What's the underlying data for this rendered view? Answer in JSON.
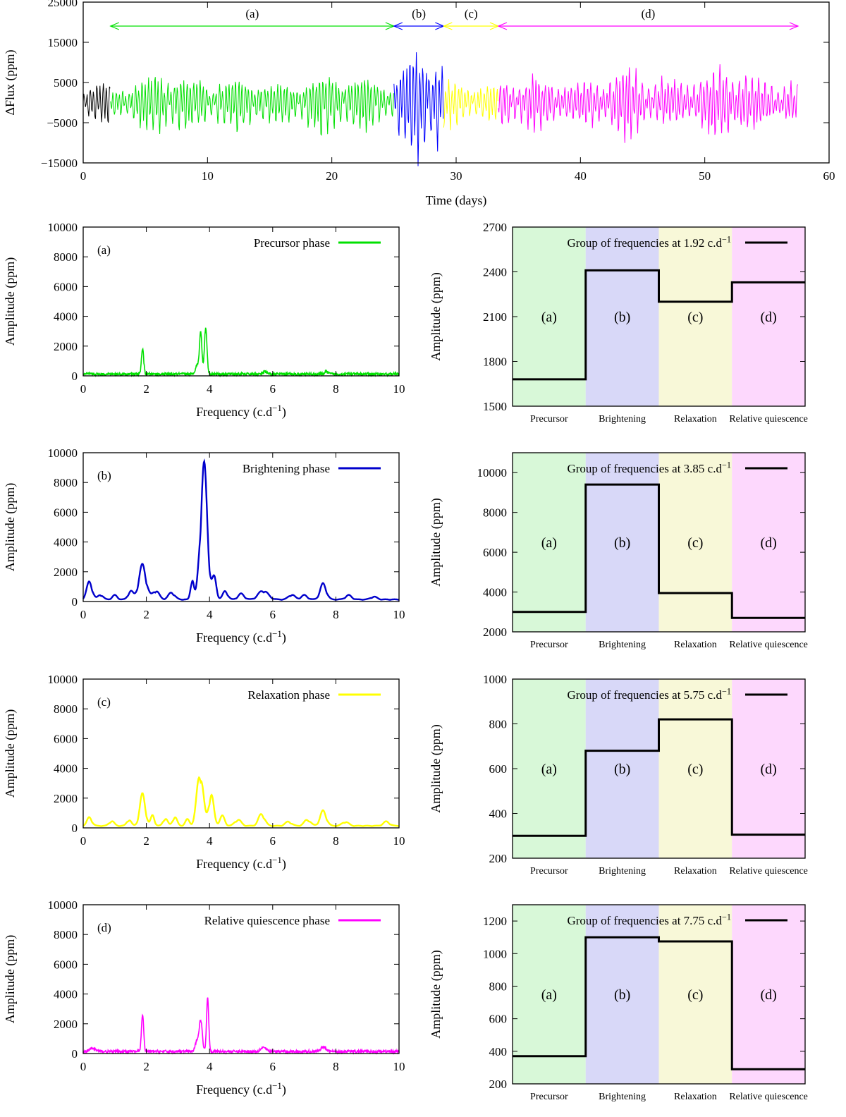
{
  "chart_data": [
    {
      "id": "lightcurve",
      "type": "line",
      "xlabel": "Time (days)",
      "ylabel": "ΔFlux (ppm)",
      "xlim": [
        0,
        60
      ],
      "ylim": [
        -15000,
        25000
      ],
      "xticks": [
        0,
        10,
        20,
        30,
        40,
        50,
        60
      ],
      "yticks": [
        -15000,
        -5000,
        5000,
        15000,
        25000
      ],
      "segments": [
        {
          "name": "pre",
          "color": "#000000",
          "x_range": [
            0,
            2.2
          ],
          "envelope": [
            [
              0,
              4000
            ],
            [
              1,
              5000
            ],
            [
              2.2,
              5500
            ]
          ]
        },
        {
          "name": "(a)",
          "color": "#00e000",
          "x_range": [
            2.2,
            25
          ],
          "envelope": [
            [
              2.2,
              3500
            ],
            [
              4,
              5000
            ],
            [
              6.5,
              8500
            ],
            [
              8,
              7000
            ],
            [
              10,
              5500
            ],
            [
              12,
              6500
            ],
            [
              14,
              6000
            ],
            [
              16,
              5000
            ],
            [
              18,
              6500
            ],
            [
              20,
              8000
            ],
            [
              22,
              7000
            ],
            [
              24,
              5500
            ],
            [
              25,
              5000
            ]
          ]
        },
        {
          "name": "(b)",
          "color": "#0000ff",
          "x_range": [
            25,
            29
          ],
          "envelope": [
            [
              25,
              7000
            ],
            [
              26.5,
              12000
            ],
            [
              27.5,
              15000
            ],
            [
              28.5,
              13000
            ],
            [
              29,
              10000
            ]
          ]
        },
        {
          "name": "(c)",
          "color": "#ffff00",
          "x_range": [
            29,
            33.4
          ],
          "envelope": [
            [
              29,
              6000
            ],
            [
              31,
              5000
            ],
            [
              33.4,
              4500
            ]
          ]
        },
        {
          "name": "(d)",
          "color": "#ff00ff",
          "x_range": [
            33.4,
            57.5
          ],
          "envelope": [
            [
              33.4,
              5500
            ],
            [
              36,
              7000
            ],
            [
              38,
              5500
            ],
            [
              40,
              5000
            ],
            [
              42,
              6500
            ],
            [
              44,
              9500
            ],
            [
              46,
              6000
            ],
            [
              48,
              5500
            ],
            [
              50,
              7000
            ],
            [
              52,
              10000
            ],
            [
              54,
              6500
            ],
            [
              56,
              5500
            ],
            [
              57.5,
              5000
            ]
          ]
        }
      ],
      "arrows": [
        {
          "label": "(a)",
          "from": 2.2,
          "to": 25,
          "color": "#00e000"
        },
        {
          "label": "(b)",
          "from": 25,
          "to": 29,
          "color": "#0000ff"
        },
        {
          "label": "(c)",
          "from": 29,
          "to": 33.4,
          "color": "#ffff00"
        },
        {
          "label": "(d)",
          "from": 33.4,
          "to": 57.5,
          "color": "#ff00ff"
        }
      ]
    },
    {
      "id": "spec-a",
      "type": "line",
      "panel_label": "(a)",
      "legend": "Precursor phase",
      "color": "#00e000",
      "style": "noisy",
      "xlabel": "Frequency (c.d",
      "xlabel_sup": "−1",
      "xlabel_end": ")",
      "ylabel": "Amplitude (ppm)",
      "xlim": [
        0,
        10
      ],
      "ylim": [
        0,
        10000
      ],
      "xticks": [
        0,
        2,
        4,
        6,
        8,
        10
      ],
      "yticks": [
        0,
        2000,
        4000,
        6000,
        8000,
        10000
      ],
      "baseline": 100,
      "peaks": [
        [
          1.88,
          1700,
          0.035
        ],
        [
          3.72,
          2800,
          0.04
        ],
        [
          3.88,
          3100,
          0.04
        ],
        [
          3.6,
          600,
          0.05
        ],
        [
          5.75,
          150,
          0.06
        ],
        [
          7.7,
          150,
          0.06
        ]
      ]
    },
    {
      "id": "spec-b",
      "type": "line",
      "panel_label": "(b)",
      "legend": "Brightening phase",
      "color": "#0000cc",
      "style": "smooth",
      "xlabel": "Frequency (c.d",
      "xlabel_sup": "−1",
      "xlabel_end": ")",
      "ylabel": "Amplitude (ppm)",
      "xlim": [
        0,
        10
      ],
      "ylim": [
        0,
        10000
      ],
      "xticks": [
        0,
        2,
        4,
        6,
        8,
        10
      ],
      "yticks": [
        0,
        2000,
        4000,
        6000,
        8000,
        10000
      ],
      "baseline": 150,
      "peaks": [
        [
          0.2,
          1250,
          0.09
        ],
        [
          0.55,
          350,
          0.08
        ],
        [
          1.0,
          300,
          0.08
        ],
        [
          1.5,
          600,
          0.08
        ],
        [
          1.88,
          2400,
          0.12
        ],
        [
          2.3,
          650,
          0.1
        ],
        [
          2.8,
          500,
          0.1
        ],
        [
          3.45,
          1500,
          0.05
        ],
        [
          3.82,
          9400,
          0.11
        ],
        [
          4.15,
          1500,
          0.07
        ],
        [
          4.5,
          600,
          0.08
        ],
        [
          5.0,
          400,
          0.1
        ],
        [
          5.7,
          650,
          0.15
        ],
        [
          6.6,
          350,
          0.1
        ],
        [
          7.0,
          300,
          0.1
        ],
        [
          7.6,
          1100,
          0.1
        ],
        [
          8.4,
          300,
          0.1
        ],
        [
          9.2,
          200,
          0.1
        ]
      ]
    },
    {
      "id": "spec-c",
      "type": "line",
      "panel_label": "(c)",
      "legend": "Relaxation phase",
      "color": "#ffff00",
      "style": "smooth",
      "xlabel": "Frequency (c.d",
      "xlabel_sup": "−1",
      "xlabel_end": ")",
      "ylabel": "Amplitude (ppm)",
      "xlim": [
        0,
        10
      ],
      "ylim": [
        0,
        10000
      ],
      "xticks": [
        0,
        2,
        4,
        6,
        8,
        10
      ],
      "yticks": [
        0,
        2000,
        4000,
        6000,
        8000,
        10000
      ],
      "baseline": 150,
      "peaks": [
        [
          0.2,
          600,
          0.08
        ],
        [
          0.9,
          350,
          0.08
        ],
        [
          1.45,
          450,
          0.07
        ],
        [
          1.88,
          2200,
          0.09
        ],
        [
          2.2,
          750,
          0.06
        ],
        [
          2.6,
          550,
          0.07
        ],
        [
          2.9,
          650,
          0.07
        ],
        [
          3.3,
          450,
          0.07
        ],
        [
          3.7,
          3950,
          0.1
        ],
        [
          4.05,
          2300,
          0.08
        ],
        [
          4.4,
          700,
          0.08
        ],
        [
          4.9,
          450,
          0.1
        ],
        [
          5.65,
          850,
          0.1
        ],
        [
          6.5,
          300,
          0.1
        ],
        [
          7.1,
          450,
          0.1
        ],
        [
          7.6,
          1050,
          0.1
        ],
        [
          8.3,
          300,
          0.1
        ],
        [
          9.6,
          300,
          0.1
        ]
      ]
    },
    {
      "id": "spec-d",
      "type": "line",
      "panel_label": "(d)",
      "legend": "Relative quiescence phase",
      "color": "#ff00ff",
      "style": "noisy",
      "xlabel": "Frequency (c.d",
      "xlabel_sup": "−1",
      "xlabel_end": ")",
      "ylabel": "Amplitude (ppm)",
      "xlim": [
        0,
        10
      ],
      "ylim": [
        0,
        10000
      ],
      "xticks": [
        0,
        2,
        4,
        6,
        8,
        10
      ],
      "yticks": [
        0,
        2000,
        4000,
        6000,
        8000,
        10000
      ],
      "baseline": 120,
      "peaks": [
        [
          1.88,
          2500,
          0.035
        ],
        [
          3.72,
          2100,
          0.05
        ],
        [
          3.94,
          3600,
          0.035
        ],
        [
          3.6,
          700,
          0.05
        ],
        [
          5.7,
          300,
          0.08
        ],
        [
          7.6,
          300,
          0.08
        ],
        [
          0.3,
          200,
          0.1
        ]
      ]
    },
    {
      "id": "step-1",
      "type": "step",
      "legend": "Group of frequencies at 1.92 c.d",
      "legend_sup": "−1",
      "ylabel": "Amplitude (ppm)",
      "ylim": [
        1500,
        2700
      ],
      "yticks": [
        1500,
        1800,
        2100,
        2400,
        2700
      ],
      "values": [
        1680,
        2410,
        2200,
        2330
      ]
    },
    {
      "id": "step-2",
      "type": "step",
      "legend": "Group of frequencies at 3.85 c.d",
      "legend_sup": "−1",
      "ylabel": "Amplitude (ppm)",
      "ylim": [
        2000,
        11000
      ],
      "yticks": [
        2000,
        4000,
        6000,
        8000,
        10000
      ],
      "values": [
        3000,
        9400,
        3950,
        2700
      ]
    },
    {
      "id": "step-3",
      "type": "step",
      "legend": "Group of frequencies at 5.75 c.d",
      "legend_sup": "−1",
      "ylabel": "Amplitude (ppm)",
      "ylim": [
        200,
        1000
      ],
      "yticks": [
        200,
        400,
        600,
        800,
        1000
      ],
      "values": [
        300,
        680,
        820,
        305
      ]
    },
    {
      "id": "step-4",
      "type": "step",
      "legend": "Group of frequencies at 7.75 c.d",
      "legend_sup": "−1",
      "ylabel": "Amplitude (ppm)",
      "ylim": [
        200,
        1300
      ],
      "yticks": [
        200,
        400,
        600,
        800,
        1000,
        1200
      ],
      "values": [
        370,
        1100,
        1075,
        290
      ]
    }
  ],
  "phases": {
    "labels": [
      "(a)",
      "(b)",
      "(c)",
      "(d)"
    ],
    "names": [
      "Precursor",
      "Brightening",
      "Relaxation",
      "Relative quiescence"
    ],
    "fill_colors": [
      "#d8f8d8",
      "#d8d8f8",
      "#f8f8d8",
      "#fdd8fd"
    ]
  }
}
